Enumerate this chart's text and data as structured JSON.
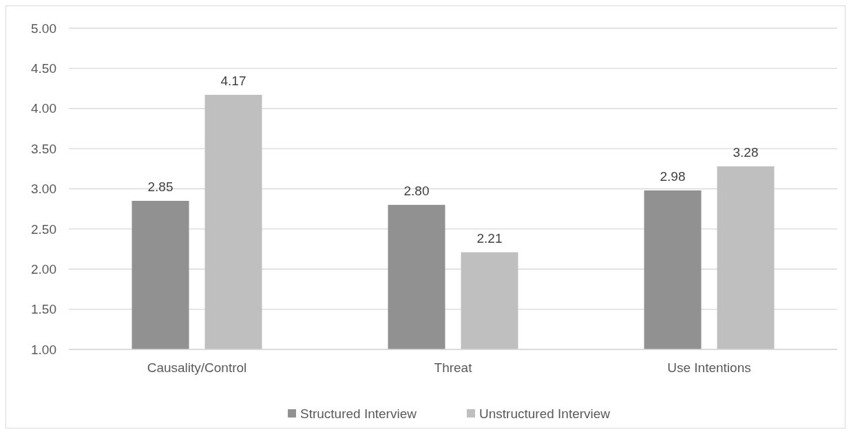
{
  "chart_data": {
    "type": "bar",
    "categories": [
      "Causality/Control",
      "Threat",
      "Use Intentions"
    ],
    "series": [
      {
        "name": "Structured Interview",
        "color": "#919191",
        "values": [
          2.85,
          2.8,
          2.98
        ],
        "value_labels": [
          "2.85",
          "2.80",
          "2.98"
        ]
      },
      {
        "name": "Unstructured Interview",
        "color": "#bfbfbf",
        "values": [
          4.17,
          2.21,
          3.28
        ],
        "value_labels": [
          "4.17",
          "2.21",
          "3.28"
        ]
      }
    ],
    "ylim": [
      1,
      5
    ],
    "yticks": [
      {
        "value": 1,
        "label": "1.00"
      },
      {
        "value": 1.5,
        "label": "1.50"
      },
      {
        "value": 2,
        "label": "2.00"
      },
      {
        "value": 2.5,
        "label": "2.50"
      },
      {
        "value": 3,
        "label": "3.00"
      },
      {
        "value": 3.5,
        "label": "3.50"
      },
      {
        "value": 4,
        "label": "4.00"
      },
      {
        "value": 4.5,
        "label": "4.50"
      },
      {
        "value": 5,
        "label": "5.00"
      }
    ],
    "grid": "y",
    "legend": "bottom"
  }
}
